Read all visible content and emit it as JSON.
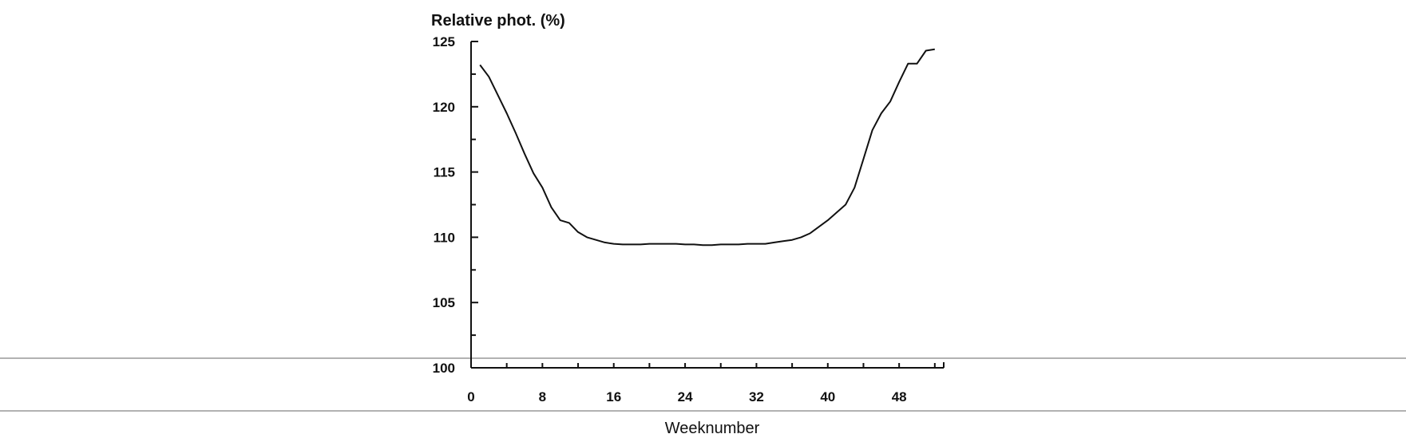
{
  "chart_data": {
    "type": "line",
    "title": "",
    "ylabel": "Relative phot. (%)",
    "xlabel": "Weeknumber",
    "xlim": [
      0,
      53
    ],
    "ylim": [
      100,
      125
    ],
    "x_ticks": [
      0,
      8,
      16,
      24,
      32,
      40,
      48
    ],
    "y_ticks": [
      100,
      105,
      110,
      115,
      120,
      125
    ],
    "grid": false,
    "legend": "none",
    "series": [
      {
        "x": [
          1,
          2,
          3,
          4,
          5,
          6,
          7,
          8,
          9,
          10,
          11,
          12,
          13,
          14,
          15,
          16,
          17,
          18,
          19,
          20,
          21,
          22,
          23,
          24,
          25,
          26,
          27,
          28,
          29,
          30,
          31,
          32,
          33,
          34,
          35,
          36,
          37,
          38,
          39,
          40,
          41,
          42,
          43,
          44,
          45,
          46,
          47,
          48,
          49,
          50,
          51,
          52
        ],
        "values": [
          123.2,
          122.3,
          120.9,
          119.5,
          118.0,
          116.4,
          114.9,
          113.8,
          112.3,
          111.3,
          111.1,
          110.4,
          110.0,
          109.8,
          109.6,
          109.5,
          109.45,
          109.45,
          109.45,
          109.5,
          109.5,
          109.5,
          109.5,
          109.45,
          109.45,
          109.4,
          109.4,
          109.45,
          109.45,
          109.45,
          109.5,
          109.5,
          109.5,
          109.6,
          109.7,
          109.8,
          110.0,
          110.3,
          110.8,
          111.3,
          111.9,
          112.5,
          113.8,
          116.0,
          118.2,
          119.5,
          120.4,
          121.9,
          123.3,
          123.3,
          124.3,
          124.4
        ],
        "color": "#111111"
      }
    ]
  }
}
